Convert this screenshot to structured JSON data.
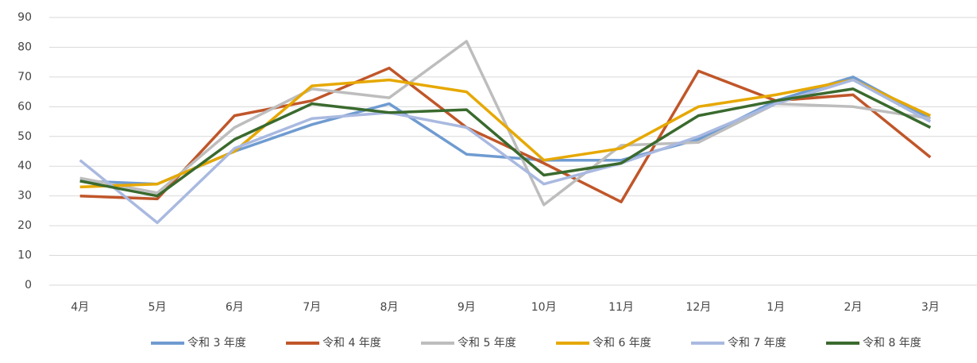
{
  "chart_data": {
    "type": "line",
    "categories": [
      "4月",
      "5月",
      "6月",
      "7月",
      "8月",
      "9月",
      "10月",
      "11月",
      "12月",
      "1月",
      "2月",
      "3月"
    ],
    "series": [
      {
        "name": "令和 3 年度",
        "color": "#6f9bd0",
        "values": [
          35,
          34,
          45,
          54,
          61,
          44,
          42,
          42,
          49,
          62,
          70,
          56
        ]
      },
      {
        "name": "令和 4 年度",
        "color": "#c0562a",
        "values": [
          30,
          29,
          57,
          62,
          73,
          53,
          41,
          28,
          72,
          62,
          64,
          43
        ]
      },
      {
        "name": "令和 5 年度",
        "color": "#bdbdbd",
        "values": [
          36,
          31,
          53,
          66,
          63,
          82,
          27,
          47,
          48,
          61,
          60,
          56
        ]
      },
      {
        "name": "令和 6 年度",
        "color": "#e6a800",
        "values": [
          33,
          34,
          45,
          67,
          69,
          65,
          42,
          46,
          60,
          64,
          69,
          57
        ]
      },
      {
        "name": "令和 7 年度",
        "color": "#a9b9e0",
        "values": [
          42,
          21,
          46,
          56,
          58,
          53,
          34,
          41,
          50,
          61,
          69,
          55
        ]
      },
      {
        "name": "令和 8 年度",
        "color": "#3a6a2e",
        "values": [
          35,
          30,
          49,
          61,
          58,
          59,
          37,
          41,
          57,
          62,
          66,
          53
        ]
      }
    ],
    "ylim": [
      0,
      90
    ],
    "yticks": [
      0,
      10,
      20,
      30,
      40,
      50,
      60,
      70,
      80,
      90
    ],
    "grid": true,
    "legend": "bottom"
  }
}
